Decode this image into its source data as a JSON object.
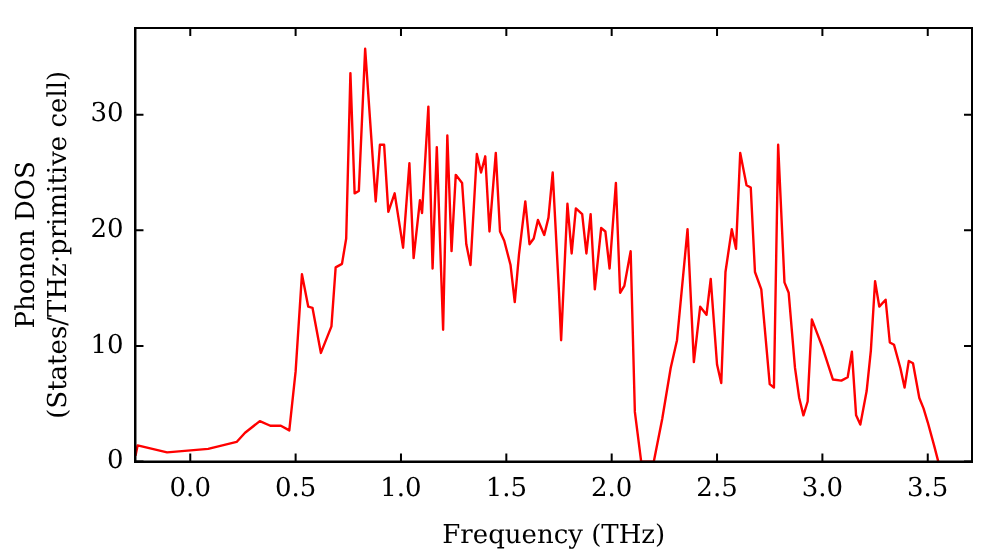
{
  "chart_data": {
    "type": "line",
    "xlabel": "Frequency (THz)",
    "ylabel": "Phonon DOS\n(States/THz·primitive cell)",
    "xlim": [
      -0.26,
      3.71
    ],
    "ylim": [
      0,
      37.5
    ],
    "xticks": [
      {
        "value": 0,
        "label": "0.0"
      },
      {
        "value": 0.5,
        "label": "0.5"
      },
      {
        "value": 1,
        "label": "1.0"
      },
      {
        "value": 1.5,
        "label": "1.5"
      },
      {
        "value": 2,
        "label": "2.0"
      },
      {
        "value": 2.5,
        "label": "2.5"
      },
      {
        "value": 3,
        "label": "3.0"
      },
      {
        "value": 3.5,
        "label": "3.5"
      }
    ],
    "yticks": [
      0,
      10,
      20,
      30
    ],
    "grid": false,
    "legend": false,
    "marker": "none",
    "line_style": "solid",
    "series": [
      {
        "color": "#ff0000",
        "x": [
          -0.26,
          -0.25,
          -0.11,
          0.085,
          0.22,
          0.26,
          0.33,
          0.38,
          0.43,
          0.47,
          0.5,
          0.53,
          0.56,
          0.58,
          0.62,
          0.67,
          0.69,
          0.72,
          0.74,
          0.76,
          0.78,
          0.8,
          0.83,
          0.88,
          0.9,
          0.92,
          0.94,
          0.97,
          1.01,
          1.04,
          1.06,
          1.09,
          1.1,
          1.13,
          1.15,
          1.17,
          1.2,
          1.22,
          1.24,
          1.26,
          1.29,
          1.31,
          1.33,
          1.36,
          1.38,
          1.4,
          1.42,
          1.45,
          1.47,
          1.49,
          1.52,
          1.54,
          1.56,
          1.59,
          1.61,
          1.63,
          1.65,
          1.68,
          1.7,
          1.72,
          1.75,
          1.76,
          1.79,
          1.81,
          1.83,
          1.86,
          1.88,
          1.9,
          1.92,
          1.95,
          1.97,
          1.99,
          2.02,
          2.04,
          2.06,
          2.09,
          2.11,
          2.14,
          2.2,
          2.24,
          2.28,
          2.31,
          2.36,
          2.39,
          2.42,
          2.45,
          2.47,
          2.5,
          2.52,
          2.54,
          2.57,
          2.59,
          2.61,
          2.64,
          2.66,
          2.68,
          2.71,
          2.75,
          2.77,
          2.79,
          2.82,
          2.84,
          2.87,
          2.89,
          2.91,
          2.93,
          2.95,
          3.0,
          3.05,
          3.09,
          3.12,
          3.14,
          3.16,
          3.18,
          3.21,
          3.23,
          3.25,
          3.27,
          3.3,
          3.32,
          3.34,
          3.37,
          3.39,
          3.41,
          3.43,
          3.46,
          3.48,
          3.5,
          3.53,
          3.55
        ],
        "values": [
          0.5,
          1.4,
          0.8,
          1.1,
          1.7,
          2.5,
          3.5,
          3.1,
          3.1,
          2.7,
          7.8,
          16.2,
          13.4,
          13.3,
          9.4,
          11.7,
          16.8,
          17.1,
          19.3,
          33.6,
          23.2,
          23.4,
          35.7,
          22.5,
          27.4,
          27.4,
          21.6,
          23.2,
          18.5,
          25.8,
          17.6,
          22.6,
          21.5,
          30.7,
          16.7,
          27.2,
          11.4,
          28.2,
          18.2,
          24.8,
          24.1,
          18.8,
          17,
          26.6,
          25,
          26.4,
          19.9,
          26.7,
          19.9,
          19.1,
          17,
          13.8,
          17.9,
          22.5,
          18.8,
          19.3,
          20.9,
          19.6,
          21.1,
          25,
          14.6,
          10.5,
          22.3,
          18,
          21.9,
          21.4,
          18,
          21.4,
          14.9,
          20.2,
          19.9,
          16.7,
          24.1,
          14.6,
          15.2,
          18.2,
          4.3,
          0,
          0,
          3.7,
          8.1,
          10.5,
          20.1,
          8.6,
          13.4,
          12.7,
          15.8,
          8.4,
          6.8,
          16.4,
          20.1,
          18.4,
          26.7,
          23.9,
          23.7,
          16.4,
          14.9,
          6.7,
          6.4,
          27.4,
          15.5,
          14.6,
          8.1,
          5.5,
          4,
          5.2,
          12.3,
          9.9,
          7.1,
          7,
          7.3,
          9.5,
          4,
          3.2,
          6.1,
          9.6,
          15.6,
          13.4,
          14,
          10.3,
          10.1,
          8.1,
          6.4,
          8.7,
          8.5,
          5.5,
          4.6,
          3.4,
          1.4,
          0
        ]
      }
    ]
  }
}
